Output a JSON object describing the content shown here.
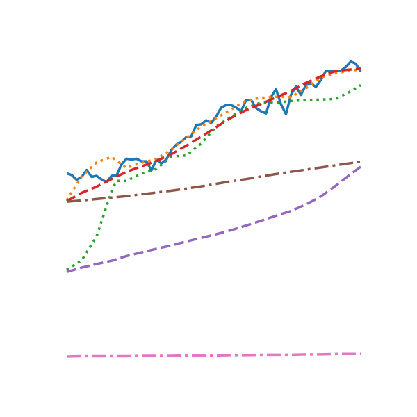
{
  "chart_data": {
    "type": "line",
    "title": "",
    "xlabel": "",
    "ylabel": "",
    "grid": false,
    "legend": false,
    "xlim": [
      0,
      59
    ],
    "ylim": [
      0,
      100
    ],
    "series": [
      {
        "color": "#1f77b4",
        "dash": "solid",
        "width": 3.5,
        "x": [
          0,
          1,
          2,
          3,
          4,
          5,
          6,
          7,
          8,
          9,
          10,
          11,
          12,
          13,
          14,
          15,
          16,
          17,
          18,
          19,
          20,
          21,
          22,
          23,
          24,
          25,
          26,
          27,
          28,
          29,
          30,
          31,
          32,
          33,
          34,
          35,
          36,
          37,
          38,
          39,
          40,
          41,
          42,
          43,
          44,
          45,
          46,
          47,
          48,
          49,
          50,
          51,
          52,
          53,
          54,
          55,
          56,
          57,
          58,
          59
        ],
        "values": [
          71.4,
          70.9,
          69.6,
          70.4,
          72.3,
          70.4,
          70.7,
          69.7,
          69.0,
          70.7,
          70.8,
          73.9,
          75.4,
          75.2,
          75.4,
          74.7,
          74.7,
          72.2,
          75.2,
          74.1,
          75.2,
          77.8,
          79.3,
          80.1,
          81.4,
          81.6,
          84.7,
          84.9,
          86.0,
          85.3,
          87.1,
          89.5,
          90.2,
          90.2,
          89.5,
          88.5,
          91.6,
          91.6,
          89.4,
          88.5,
          87.9,
          92.4,
          94.6,
          90.4,
          87.7,
          93.0,
          95.3,
          93.0,
          95.7,
          96.2,
          95.2,
          97.1,
          99.6,
          99.6,
          99.5,
          99.7,
          100.7,
          102.2,
          101.6,
          99.4
        ]
      },
      {
        "color": "#ff7f0e",
        "dash": "dotted",
        "width": 3.5,
        "x": [
          0,
          3,
          6,
          9,
          12,
          15,
          18,
          21,
          24,
          27,
          30,
          33,
          36,
          39,
          42,
          45,
          48,
          51,
          54,
          57,
          59
        ],
        "values": [
          64.0,
          70.5,
          74.4,
          75.9,
          72.9,
          74.3,
          75.3,
          78.0,
          81.2,
          84.3,
          86.6,
          89.0,
          91.4,
          92.2,
          92.5,
          92.4,
          94.8,
          97.8,
          99.0,
          99.7,
          100.0
        ]
      },
      {
        "color": "#2ca02c",
        "dash": "dotted",
        "width": 3.5,
        "x": [
          0,
          3,
          6,
          9,
          10,
          12,
          15,
          18,
          21,
          24,
          27,
          30,
          33,
          36,
          39,
          42,
          45,
          48,
          51,
          54,
          57,
          59
        ],
        "values": [
          44.8,
          47.4,
          54.0,
          66.5,
          69.3,
          69.3,
          71.3,
          72.6,
          76.0,
          76.3,
          79.6,
          84.3,
          87.1,
          89.4,
          90.9,
          90.8,
          91.3,
          91.6,
          91.7,
          91.9,
          94.0,
          95.7
        ]
      },
      {
        "color": "#d62728",
        "dash": "dashed",
        "width": 3.5,
        "x": [
          0,
          3,
          6,
          9,
          12,
          15,
          18,
          21,
          24,
          27,
          30,
          33,
          36,
          39,
          42,
          45,
          48,
          51,
          54,
          57,
          59
        ],
        "values": [
          63.7,
          66.0,
          67.7,
          69.8,
          71.8,
          73.3,
          74.8,
          76.7,
          79.0,
          81.5,
          84.1,
          86.7,
          88.8,
          90.5,
          92.3,
          94.1,
          96.3,
          98.1,
          99.6,
          100.0,
          100.3
        ]
      },
      {
        "color": "#9467bd",
        "dash": "dashed",
        "width": 3.5,
        "x": [
          0,
          3,
          6,
          9,
          12,
          15,
          18,
          21,
          24,
          27,
          30,
          33,
          36,
          39,
          42,
          45,
          48,
          51,
          54,
          57,
          59
        ],
        "values": [
          44.2,
          45.4,
          46.4,
          47.3,
          48.6,
          49.6,
          50.6,
          51.5,
          52.6,
          53.6,
          54.6,
          55.7,
          57.0,
          58.3,
          59.7,
          61.0,
          62.8,
          65.0,
          68.0,
          71.2,
          73.2
        ]
      },
      {
        "color": "#8c564b",
        "dash": "dashdot",
        "width": 3.5,
        "x": [
          0,
          3,
          6,
          9,
          12,
          15,
          18,
          21,
          24,
          27,
          30,
          33,
          36,
          39,
          42,
          45,
          48,
          51,
          54,
          57,
          59
        ],
        "values": [
          63.6,
          63.9,
          64.3,
          64.7,
          65.1,
          65.6,
          66.1,
          66.6,
          67.2,
          67.8,
          68.5,
          69.2,
          69.8,
          70.5,
          71.2,
          71.8,
          72.4,
          73.0,
          73.6,
          74.2,
          74.6
        ]
      },
      {
        "color": "#e377c2",
        "dash": "dashdot",
        "width": 3.5,
        "x": [
          0,
          3,
          6,
          9,
          12,
          15,
          18,
          21,
          24,
          27,
          30,
          33,
          36,
          39,
          42,
          45,
          48,
          51,
          54,
          57,
          59
        ],
        "values": [
          20.9,
          21.0,
          21.0,
          21.0,
          21.0,
          21.1,
          21.1,
          21.1,
          21.2,
          21.2,
          21.2,
          21.3,
          21.3,
          21.4,
          21.4,
          21.4,
          21.5,
          21.5,
          21.6,
          21.6,
          21.6
        ]
      }
    ]
  }
}
